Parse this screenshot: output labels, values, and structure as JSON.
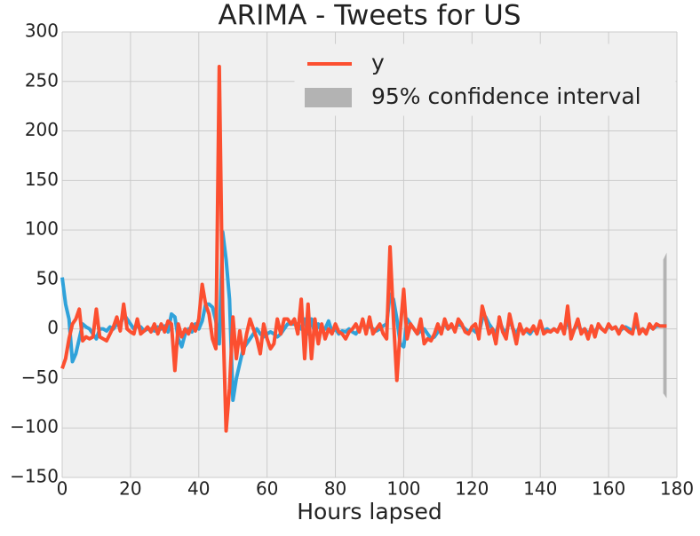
{
  "chart_data": {
    "type": "line",
    "title": "ARIMA - Tweets for US",
    "x_label": "Hours lapsed",
    "x": [
      0,
      1,
      2,
      3,
      4,
      5,
      6,
      7,
      8,
      9,
      10,
      11,
      12,
      13,
      14,
      15,
      16,
      17,
      18,
      19,
      20,
      21,
      22,
      23,
      24,
      25,
      26,
      27,
      28,
      29,
      30,
      31,
      32,
      33,
      34,
      35,
      36,
      37,
      38,
      39,
      40,
      41,
      42,
      43,
      44,
      45,
      46,
      47,
      48,
      49,
      50,
      51,
      52,
      53,
      54,
      55,
      56,
      57,
      58,
      59,
      60,
      61,
      62,
      63,
      64,
      65,
      66,
      67,
      68,
      69,
      70,
      71,
      72,
      73,
      74,
      75,
      76,
      77,
      78,
      79,
      80,
      81,
      82,
      83,
      84,
      85,
      86,
      87,
      88,
      89,
      90,
      91,
      92,
      93,
      94,
      95,
      96,
      97,
      98,
      99,
      100,
      101,
      102,
      103,
      104,
      105,
      106,
      107,
      108,
      109,
      110,
      111,
      112,
      113,
      114,
      115,
      116,
      117,
      118,
      119,
      120,
      121,
      122,
      123,
      124,
      125,
      126,
      127,
      128,
      129,
      130,
      131,
      132,
      133,
      134,
      135,
      136,
      137,
      138,
      139,
      140,
      141,
      142,
      143,
      144,
      145,
      146,
      147,
      148,
      149,
      150,
      151,
      152,
      153,
      154,
      155,
      156,
      157,
      158,
      159,
      160,
      161,
      162,
      163,
      164,
      165,
      166,
      167,
      168,
      169,
      170,
      171,
      172,
      173,
      174,
      175,
      176,
      177
    ],
    "series": [
      {
        "color": "#30a2da",
        "values": [
          52,
          25,
          10,
          -33,
          -25,
          -10,
          5,
          2,
          0,
          -5,
          -10,
          0,
          0,
          -2,
          2,
          0,
          5,
          3,
          15,
          10,
          5,
          0,
          3,
          2,
          -2,
          0,
          0,
          -2,
          2,
          0,
          3,
          -3,
          15,
          12,
          -10,
          -18,
          -5,
          0,
          -3,
          5,
          0,
          8,
          25,
          25,
          22,
          8,
          -15,
          98,
          70,
          30,
          -72,
          -50,
          -35,
          -20,
          -15,
          -10,
          -5,
          0,
          -5,
          -8,
          -5,
          -3,
          -5,
          -8,
          -5,
          0,
          5,
          5,
          5,
          5,
          0,
          10,
          -5,
          10,
          -5,
          5,
          -2,
          0,
          8,
          -3,
          0,
          -5,
          -2,
          -3,
          0,
          -3,
          -5,
          0,
          5,
          0,
          3,
          0,
          -2,
          0,
          3,
          5,
          35,
          30,
          10,
          -15,
          -18,
          10,
          5,
          0,
          -5,
          -2,
          0,
          -5,
          -10,
          -8,
          -3,
          0,
          5,
          0,
          3,
          0,
          5,
          3,
          0,
          -3,
          0,
          -3,
          -5,
          10,
          12,
          5,
          0,
          -5,
          8,
          0,
          -5,
          10,
          0,
          -5,
          3,
          -3,
          -2,
          -5,
          0,
          -3,
          5,
          -2,
          0,
          -3,
          0,
          -2,
          3,
          -3,
          10,
          -5,
          0,
          5,
          -2,
          0,
          -5,
          0,
          -3,
          3,
          0,
          -2,
          3,
          0,
          2,
          -3,
          0,
          2,
          0,
          -2,
          5,
          -2,
          0,
          -3,
          3,
          0,
          3,
          3,
          3,
          3
        ]
      },
      {
        "name": "y",
        "color": "#fc4f30",
        "values": [
          -40,
          -30,
          -10,
          5,
          10,
          20,
          -12,
          -8,
          -10,
          -8,
          20,
          -8,
          -10,
          -12,
          -5,
          2,
          12,
          -2,
          25,
          0,
          -3,
          -5,
          10,
          -5,
          -2,
          2,
          -3,
          5,
          -5,
          5,
          -3,
          8,
          5,
          -42,
          5,
          -8,
          0,
          -5,
          5,
          -2,
          10,
          45,
          25,
          15,
          -10,
          -20,
          265,
          20,
          -103,
          -60,
          12,
          -30,
          -2,
          -25,
          -5,
          10,
          0,
          -10,
          -25,
          5,
          -10,
          -20,
          -15,
          10,
          -5,
          10,
          10,
          5,
          10,
          -5,
          30,
          -30,
          25,
          -30,
          10,
          -15,
          5,
          -10,
          0,
          -5,
          5,
          -3,
          -5,
          -10,
          -3,
          0,
          5,
          -3,
          10,
          -5,
          12,
          -5,
          0,
          5,
          -5,
          -10,
          83,
          10,
          -52,
          0,
          40,
          -10,
          5,
          0,
          -5,
          10,
          -15,
          -10,
          -12,
          -5,
          5,
          -5,
          10,
          0,
          5,
          -3,
          10,
          5,
          -3,
          -5,
          2,
          5,
          -10,
          23,
          10,
          -5,
          0,
          -15,
          12,
          -3,
          -10,
          15,
          0,
          -15,
          5,
          -5,
          0,
          -3,
          3,
          -5,
          8,
          -5,
          -2,
          -3,
          0,
          -3,
          5,
          -5,
          23,
          -10,
          0,
          10,
          -5,
          0,
          -10,
          3,
          -8,
          5,
          0,
          -3,
          5,
          0,
          2,
          -5,
          3,
          0,
          -3,
          -5,
          15,
          -5,
          0,
          -5,
          5,
          0,
          5,
          3,
          3,
          3
        ]
      }
    ],
    "band": {
      "name": "95% confidence interval",
      "color": "#b3b3b3",
      "x": [
        176,
        177
      ],
      "lower": [
        -65,
        -70
      ],
      "upper": [
        70,
        77
      ]
    },
    "xlim": [
      0,
      180
    ],
    "xticks": [
      0,
      20,
      40,
      60,
      80,
      100,
      120,
      140,
      160,
      180
    ],
    "ylim": [
      -150,
      300
    ],
    "yticks": [
      {
        "value": -150,
        "label": "−150"
      },
      {
        "value": -100,
        "label": "−100"
      },
      {
        "value": -50,
        "label": "−50"
      },
      0,
      50,
      100,
      150,
      200,
      250,
      300
    ],
    "grid": true,
    "legend": "upper right"
  }
}
